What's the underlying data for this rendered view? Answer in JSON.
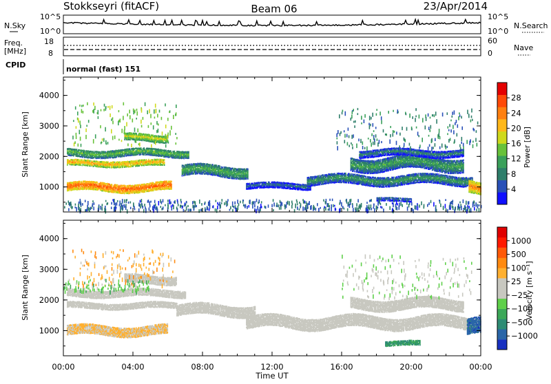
{
  "header": {
    "station": "Stokkseyri (fitACF)",
    "beam": "Beam 06",
    "date": "23/Apr/2014"
  },
  "top_panels": {
    "nsky_label": "N.Sky",
    "nsky_ticks": [
      "10^5",
      "10^0"
    ],
    "nsearch_label": "N.Search",
    "nsearch_ticks": [
      "10^5",
      "10^0"
    ],
    "freq_label": "Freq.",
    "freq_unit": "[MHz]",
    "freq_ticks": [
      "18",
      "8"
    ],
    "nave_label": "Nave",
    "nave_ticks": [
      "60",
      "0"
    ],
    "cpid_label": "CPID",
    "cpid_text": "normal (fast) 151"
  },
  "chart_data": [
    {
      "type": "heatmap",
      "name": "power",
      "xlabel": "",
      "ylabel": "Slant Range [km]",
      "xlim": [
        0,
        24
      ],
      "ylim": [
        180,
        4600
      ],
      "y_ticks": [
        "4000",
        "3000",
        "2000",
        "1000"
      ],
      "colorbar": {
        "label": "Power [dB]",
        "ticks": [
          "28",
          "24",
          "20",
          "16",
          "12",
          "8",
          "4"
        ],
        "range": [
          0,
          32
        ],
        "colors": [
          "#1010ff",
          "#2850b8",
          "#2e7e6a",
          "#3aa05a",
          "#68c23a",
          "#cfd91c",
          "#ffb81a",
          "#ff8010",
          "#ff4a08",
          "#e40000"
        ]
      },
      "bands": [
        {
          "t0": 0.2,
          "t1": 6.2,
          "r": 1020,
          "w": 140,
          "v": 26
        },
        {
          "t0": 0.2,
          "t1": 5.8,
          "r": 1800,
          "w": 90,
          "v": 22
        },
        {
          "t0": 0.2,
          "t1": 7.2,
          "r": 2150,
          "w": 120,
          "v": 14
        },
        {
          "t0": 3.5,
          "t1": 6.0,
          "r": 2650,
          "w": 120,
          "v": 18
        },
        {
          "t0": 6.8,
          "t1": 10.6,
          "r": 1550,
          "w": 180,
          "v": 13
        },
        {
          "t0": 10.5,
          "t1": 14.2,
          "r": 1050,
          "w": 90,
          "v": 8
        },
        {
          "t0": 14.0,
          "t1": 23.5,
          "r": 1250,
          "w": 150,
          "v": 11
        },
        {
          "t0": 16.5,
          "t1": 23.0,
          "r": 1800,
          "w": 220,
          "v": 12
        },
        {
          "t0": 17.0,
          "t1": 23.0,
          "r": 2150,
          "w": 120,
          "v": 9
        },
        {
          "t0": 18.0,
          "t1": 20.0,
          "r": 600,
          "w": 60,
          "v": 8
        },
        {
          "t0": 23.3,
          "t1": 24.0,
          "r": 1000,
          "w": 200,
          "v": 24
        }
      ],
      "sparse": [
        {
          "t0": 0.5,
          "t1": 6.5,
          "r0": 2400,
          "r1": 3800,
          "v": 14
        },
        {
          "t0": 15.5,
          "t1": 23.8,
          "r0": 2300,
          "r1": 3600,
          "v": 8
        },
        {
          "t0": 0.0,
          "t1": 24.0,
          "r0": 200,
          "r1": 600,
          "v": 6
        }
      ]
    },
    {
      "type": "heatmap",
      "name": "velocity",
      "xlabel": "Time UT",
      "ylabel": "Slant Range [km]",
      "xlim": [
        0,
        24
      ],
      "ylim": [
        180,
        4600
      ],
      "x_ticks": [
        "00:00",
        "04:00",
        "08:00",
        "12:00",
        "16:00",
        "20:00",
        "00:00"
      ],
      "y_ticks": [
        "4000",
        "3000",
        "2000",
        "1000"
      ],
      "colorbar": {
        "label": "Velocity [m s⁻¹]",
        "ticks": [
          "1000",
          "500",
          "100",
          "25",
          "−25",
          "−100",
          "−500",
          "−1000"
        ],
        "range": [
          -1200,
          1200
        ],
        "colors": [
          "#1830c0",
          "#2a66a8",
          "#2e8c74",
          "#3ca858",
          "#5fd04a",
          "#c8c8c0",
          "#c8c8c0",
          "#ffb030",
          "#ff8a10",
          "#ff5a08",
          "#ff1a00",
          "#e00000"
        ]
      },
      "bands": [
        {
          "t0": 0.2,
          "t1": 6.0,
          "r": 1020,
          "w": 150,
          "v": 220
        },
        {
          "t0": 0.2,
          "t1": 6.5,
          "r": 1850,
          "w": 100,
          "v": 0
        },
        {
          "t0": 0.2,
          "t1": 7.0,
          "r": 2250,
          "w": 110,
          "v": 0
        },
        {
          "t0": 3.5,
          "t1": 6.5,
          "r": 2700,
          "w": 130,
          "v": 0
        },
        {
          "t0": 6.5,
          "t1": 11.0,
          "r": 1700,
          "w": 180,
          "v": 0
        },
        {
          "t0": 10.5,
          "t1": 24.0,
          "r": 1300,
          "w": 200,
          "v": 0
        },
        {
          "t0": 16.5,
          "t1": 23.0,
          "r": 1900,
          "w": 180,
          "v": 0
        },
        {
          "t0": 18.5,
          "t1": 20.5,
          "r": 600,
          "w": 80,
          "v": -600
        },
        {
          "t0": 23.2,
          "t1": 24.0,
          "r": 1100,
          "w": 250,
          "v": -900
        }
      ],
      "sparse": [
        {
          "t0": 0.5,
          "t1": 6.5,
          "r0": 2500,
          "r1": 3700,
          "v": 300
        },
        {
          "t0": 16.0,
          "t1": 23.5,
          "r0": 2100,
          "r1": 3500,
          "v": -150
        },
        {
          "t0": 0.0,
          "t1": 5.0,
          "r0": 2300,
          "r1": 2700,
          "v": -300
        }
      ]
    }
  ]
}
